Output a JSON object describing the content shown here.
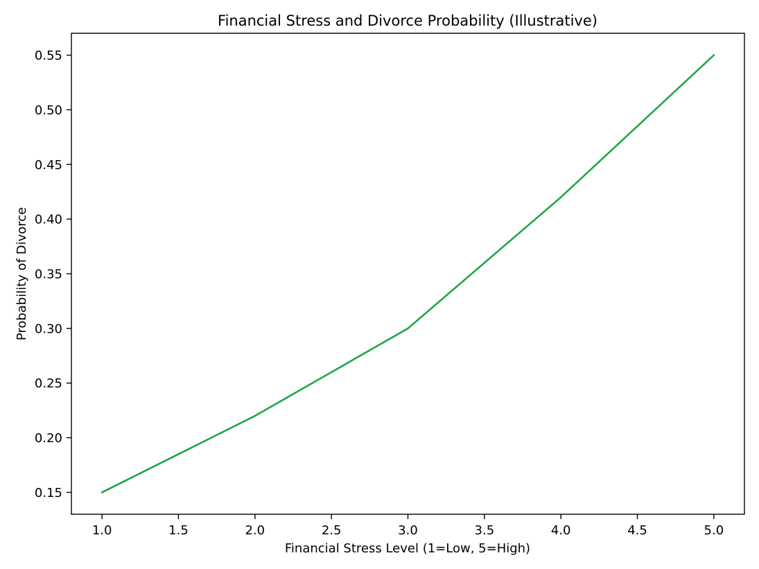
{
  "chart_data": {
    "type": "line",
    "title": "Financial Stress and Divorce Probability (Illustrative)",
    "xlabel": "Financial Stress Level (1=Low, 5=High)",
    "ylabel": "Probability of Divorce",
    "x": [
      1,
      2,
      3,
      4,
      5
    ],
    "series": [
      {
        "values": [
          0.15,
          0.22,
          0.3,
          0.42,
          0.55
        ],
        "color": "#22a548"
      }
    ],
    "xlim": [
      0.8,
      5.2
    ],
    "ylim": [
      0.13,
      0.57
    ],
    "xticks": [
      "1.0",
      "1.5",
      "2.0",
      "2.5",
      "3.0",
      "3.5",
      "4.0",
      "4.5",
      "5.0"
    ],
    "yticks": [
      "0.15",
      "0.20",
      "0.25",
      "0.30",
      "0.35",
      "0.40",
      "0.45",
      "0.50",
      "0.55"
    ],
    "grid": false,
    "legend": false
  }
}
